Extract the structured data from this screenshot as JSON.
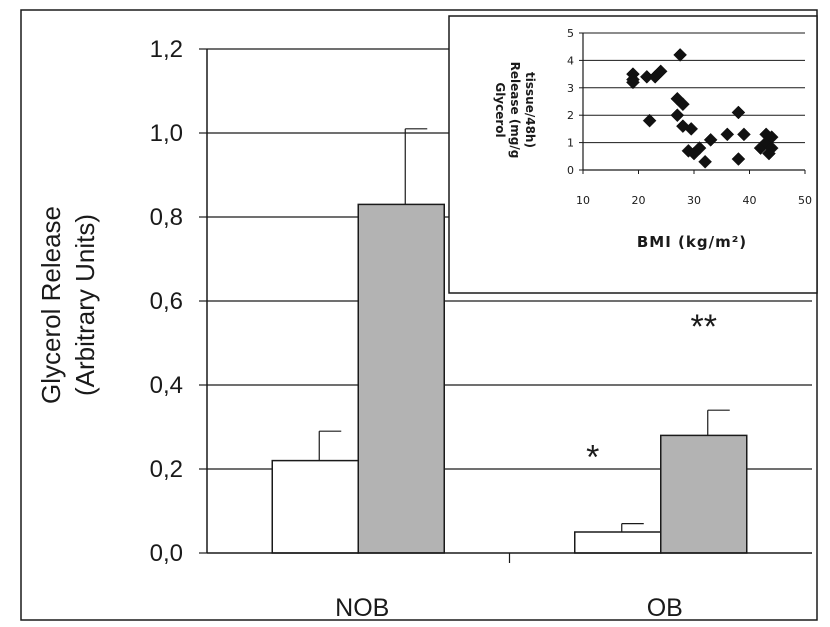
{
  "chart_data": [
    {
      "type": "bar",
      "categories": [
        "NOB",
        "OB"
      ],
      "ylabel_lines": [
        "Glycerol Release",
        "(Arbitrary Units)"
      ],
      "ylim": [
        0,
        1.2
      ],
      "yticks": [
        "0,0",
        "0,2",
        "0,4",
        "0,6",
        "0,8",
        "1,0",
        "1,2"
      ],
      "series": [
        {
          "values": [
            0.22,
            0.05
          ],
          "errors": [
            0.07,
            0.02
          ],
          "color": "#ffffff"
        },
        {
          "values": [
            0.83,
            0.28
          ],
          "errors": [
            0.18,
            0.06
          ],
          "color": "#b3b3b3"
        }
      ],
      "annotations": [
        {
          "text": "*",
          "category": "OB",
          "series": 0
        },
        {
          "text": "**",
          "category": "OB",
          "series": 1
        }
      ],
      "grid": true
    },
    {
      "type": "scatter",
      "xlabel": "BMI (kg/m²)",
      "ylabel_lines": [
        "Glycerol",
        "Release (mg/g",
        "tissue/48h)"
      ],
      "xlim": [
        10,
        50
      ],
      "ylim": [
        0,
        5
      ],
      "xticks": [
        "10",
        "20",
        "30",
        "40",
        "50"
      ],
      "yticks": [
        "0",
        "1",
        "2",
        "3",
        "4",
        "5"
      ],
      "grid": true,
      "x": [
        19,
        19,
        19,
        21.5,
        22,
        23,
        24,
        27,
        27,
        27.5,
        28,
        28,
        29,
        29.5,
        30,
        31,
        32,
        33,
        36,
        38,
        38,
        39,
        42,
        43,
        43,
        43.5,
        44,
        44
      ],
      "y": [
        3.5,
        3.3,
        3.2,
        3.4,
        1.8,
        3.4,
        3.6,
        2.0,
        2.6,
        4.2,
        2.4,
        1.6,
        0.7,
        1.5,
        0.6,
        0.8,
        0.3,
        1.1,
        1.3,
        2.1,
        0.4,
        1.3,
        0.8,
        1.3,
        1.0,
        0.6,
        0.8,
        1.2
      ]
    }
  ]
}
